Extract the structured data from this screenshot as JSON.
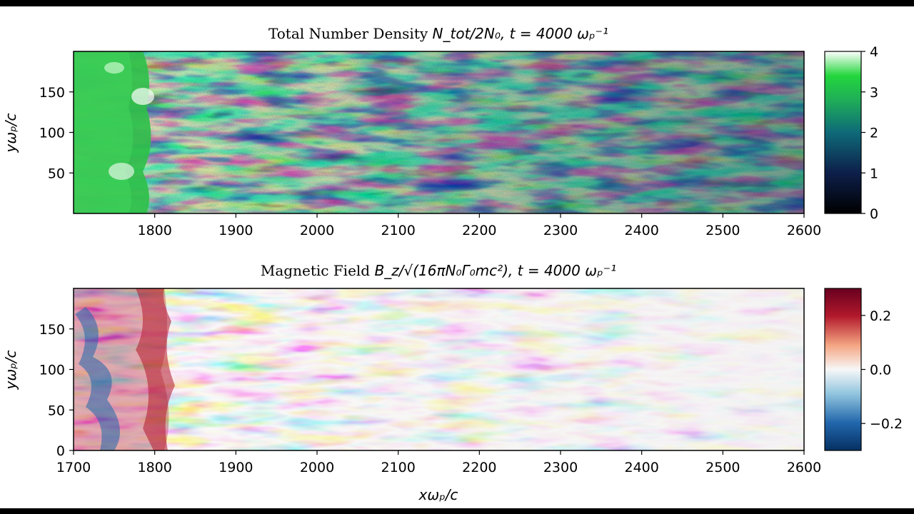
{
  "chart_data": [
    {
      "type": "heatmap",
      "title_prefix": "Total Number Density ",
      "title_math": "N_tot/2N₀",
      "title_suffix": ", t = 4000 ωₚ⁻¹",
      "ylabel": "yωₚ/c",
      "xlim": [
        1700,
        2600
      ],
      "ylim": [
        0,
        200
      ],
      "xticks": [
        1800,
        1900,
        2000,
        2100,
        2200,
        2300,
        2400,
        2500,
        2600
      ],
      "yticks": [
        50,
        100,
        150
      ],
      "colormap": "ocean-green",
      "colorbar": {
        "min": 0,
        "max": 4,
        "ticks": [
          0,
          1,
          2,
          3,
          4
        ]
      },
      "colors": [
        "#000000",
        "#0d1f4a",
        "#0e6a78",
        "#1fae58",
        "#23d63c",
        "#ffffff"
      ]
    },
    {
      "type": "heatmap",
      "title_prefix": "Magnetic Field ",
      "title_math": "B_z/√(16πN₀Γ₀mc²)",
      "title_suffix": ", t = 4000 ωₚ⁻¹",
      "ylabel": "yωₚ/c",
      "xlabel": "xωₚ/c",
      "xlim": [
        1700,
        2600
      ],
      "ylim": [
        0,
        200
      ],
      "xticks": [
        1700,
        1800,
        1900,
        2000,
        2100,
        2200,
        2300,
        2400,
        2500,
        2600
      ],
      "yticks": [
        0,
        50,
        100,
        150
      ],
      "colormap": "RdBu_r",
      "colorbar": {
        "min": -0.3,
        "max": 0.3,
        "ticks": [
          -0.2,
          0.0,
          0.2
        ],
        "tick_labels": [
          "−0.2",
          "0.0",
          "0.2"
        ]
      },
      "colors": [
        "#053061",
        "#2166ac",
        "#92c5de",
        "#f7f7f7",
        "#f4a582",
        "#b2182b",
        "#67001f"
      ]
    }
  ]
}
